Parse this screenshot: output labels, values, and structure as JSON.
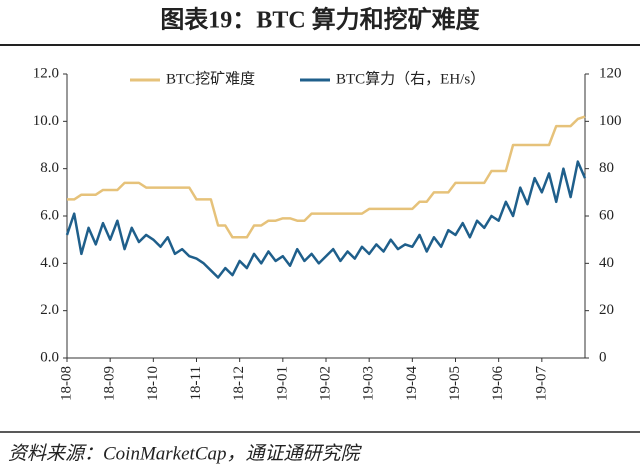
{
  "chart_data": {
    "type": "line",
    "title": "图表19：BTC 算力和挖矿难度",
    "source": "资料来源：CoinMarketCap，通证通研究院",
    "categories": [
      "18-08",
      null,
      null,
      null,
      null,
      null,
      "18-09",
      null,
      null,
      null,
      null,
      null,
      "18-10",
      null,
      null,
      null,
      null,
      null,
      "18-11",
      null,
      null,
      null,
      null,
      null,
      "18-12",
      null,
      null,
      null,
      null,
      null,
      "19-01",
      null,
      null,
      null,
      null,
      null,
      "19-02",
      null,
      null,
      null,
      null,
      null,
      "19-03",
      null,
      null,
      null,
      null,
      null,
      "19-04",
      null,
      null,
      null,
      null,
      null,
      "19-05",
      null,
      null,
      null,
      null,
      null,
      "19-06",
      null,
      null,
      null,
      null,
      null,
      "19-07",
      null,
      null,
      null,
      null,
      null,
      null
    ],
    "series": [
      {
        "name": "BTC挖矿难度",
        "color": "#e6c27a",
        "axis": "y",
        "values": [
          6.7,
          6.7,
          6.9,
          6.9,
          6.9,
          7.1,
          7.1,
          7.1,
          7.4,
          7.4,
          7.4,
          7.2,
          7.2,
          7.2,
          7.2,
          7.2,
          7.2,
          7.2,
          6.7,
          6.7,
          6.7,
          5.6,
          5.6,
          5.1,
          5.1,
          5.1,
          5.6,
          5.6,
          5.8,
          5.8,
          5.9,
          5.9,
          5.8,
          5.8,
          6.1,
          6.1,
          6.1,
          6.1,
          6.1,
          6.1,
          6.1,
          6.1,
          6.3,
          6.3,
          6.3,
          6.3,
          6.3,
          6.3,
          6.3,
          6.6,
          6.6,
          7.0,
          7.0,
          7.0,
          7.4,
          7.4,
          7.4,
          7.4,
          7.4,
          7.9,
          7.9,
          7.9,
          9.0,
          9.0,
          9.0,
          9.0,
          9.0,
          9.0,
          9.8,
          9.8,
          9.8,
          10.1,
          10.2
        ]
      },
      {
        "name": "BTC算力（右，EH/s）",
        "color": "#1f5f8b",
        "axis": "y2",
        "values": [
          52,
          61,
          44,
          55,
          48,
          57,
          50,
          58,
          46,
          55,
          49,
          52,
          50,
          47,
          51,
          44,
          46,
          43,
          42,
          40,
          37,
          34,
          38,
          35,
          41,
          38,
          44,
          40,
          45,
          41,
          43,
          39,
          46,
          41,
          44,
          40,
          43,
          46,
          41,
          45,
          42,
          47,
          44,
          48,
          45,
          50,
          46,
          48,
          47,
          52,
          45,
          51,
          47,
          54,
          52,
          57,
          51,
          58,
          55,
          60,
          58,
          66,
          60,
          72,
          65,
          76,
          70,
          78,
          66,
          80,
          68,
          83,
          76
        ]
      }
    ],
    "ylim": [
      0,
      12
    ],
    "yticks": [
      {
        "value": 0,
        "label": "0.0"
      },
      {
        "value": 2,
        "label": "2.0"
      },
      {
        "value": 4,
        "label": "4.0"
      },
      {
        "value": 6,
        "label": "6.0"
      },
      {
        "value": 8,
        "label": "8.0"
      },
      {
        "value": 10,
        "label": "10.0"
      },
      {
        "value": 12,
        "label": "12.0"
      }
    ],
    "y2lim": [
      0,
      120
    ],
    "y2ticks": [
      0,
      20,
      40,
      60,
      80,
      100,
      120
    ],
    "grid": false
  }
}
